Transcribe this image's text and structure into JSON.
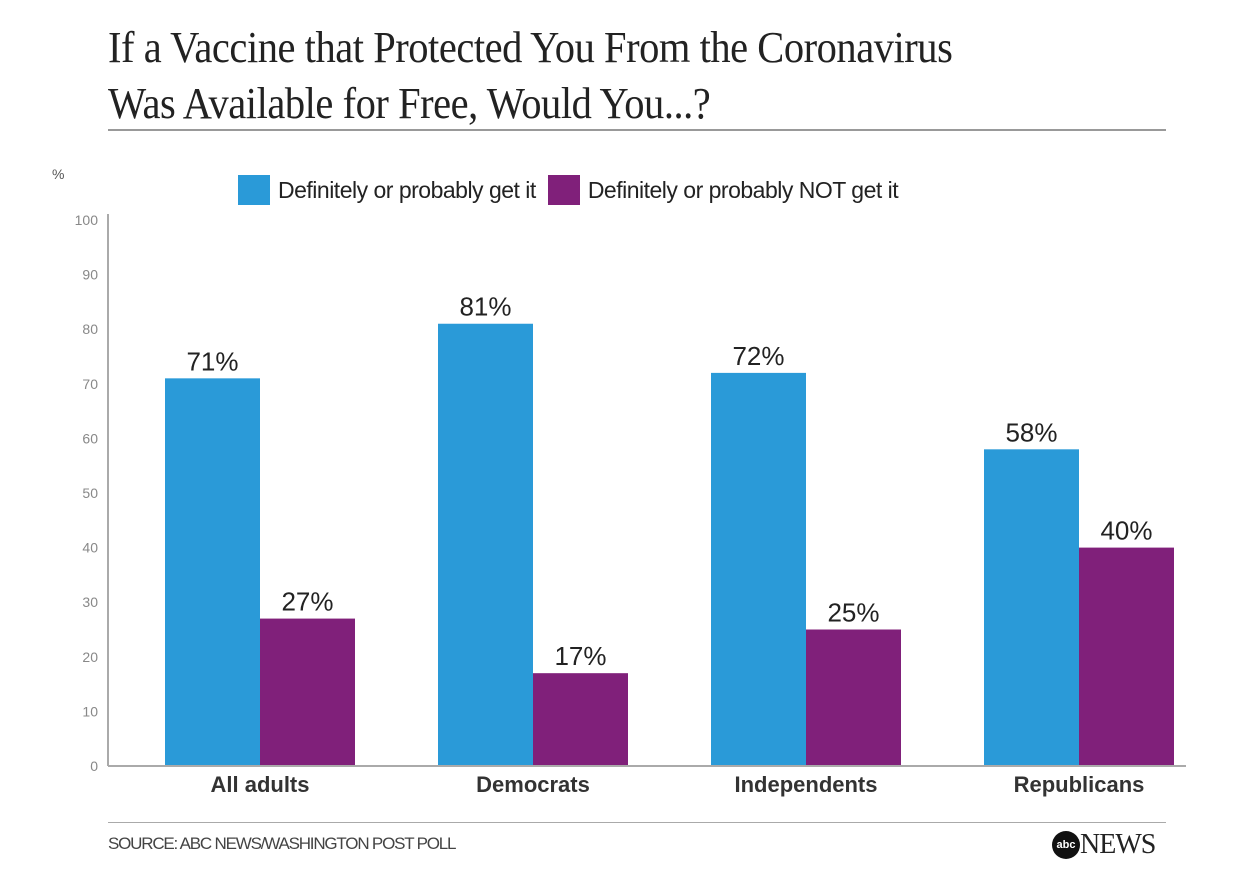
{
  "chart_data": {
    "type": "bar",
    "title": "If a Vaccine that Protected You From the Coronavirus Was Available for Free, Would You...?",
    "title_lines": [
      "If a Vaccine that Protected You From the Coronavirus",
      "Was Available for Free, Would You...?"
    ],
    "ylabel": "%",
    "ylim": [
      0,
      100
    ],
    "yticks": [
      0,
      10,
      20,
      30,
      40,
      50,
      60,
      70,
      80,
      90,
      100
    ],
    "grid": false,
    "legend_position": "top",
    "categories": [
      "All adults",
      "Democrats",
      "Independents",
      "Republicans"
    ],
    "series": [
      {
        "name": "Definitely or probably get it",
        "color": "#2a9ad8",
        "values": [
          71,
          81,
          72,
          58
        ]
      },
      {
        "name": "Definitely or probably NOT get it",
        "color": "#80207a",
        "values": [
          27,
          17,
          25,
          40
        ]
      }
    ],
    "value_label_suffix": "%"
  },
  "footer": {
    "source": "SOURCE: ABC NEWS/WASHINGTON POST POLL",
    "logo_mark": "abc",
    "logo_text": "NEWS"
  }
}
